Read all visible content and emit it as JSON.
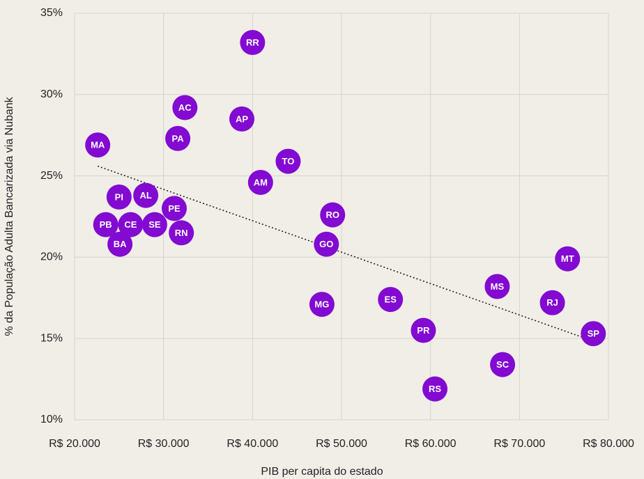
{
  "chart_data": {
    "type": "scatter",
    "xlabel": "PIB per capita do estado",
    "ylabel": "% da População Adulta Bancarizada via Nubank",
    "labels": [
      "RR",
      "AC",
      "AP",
      "MA",
      "PA",
      "TO",
      "AM",
      "PI",
      "AL",
      "PE",
      "RO",
      "PB",
      "CE",
      "SE",
      "RN",
      "BA",
      "GO",
      "MT",
      "MS",
      "RJ",
      "MG",
      "ES",
      "PR",
      "SP",
      "SC",
      "RS"
    ],
    "x": [
      40000,
      32400,
      38800,
      22600,
      31600,
      44000,
      40900,
      25000,
      28000,
      31200,
      49000,
      23500,
      26300,
      29000,
      32000,
      25100,
      48300,
      75400,
      67500,
      73700,
      47800,
      55500,
      59200,
      78300,
      68100,
      60500
    ],
    "y": [
      33.2,
      29.2,
      28.5,
      26.9,
      27.3,
      25.9,
      24.6,
      23.7,
      23.8,
      23.0,
      22.6,
      22.0,
      22.0,
      22.0,
      21.5,
      20.8,
      20.8,
      19.9,
      18.2,
      17.2,
      17.1,
      17.4,
      15.5,
      15.3,
      13.4,
      11.9
    ],
    "color": "#820ad1",
    "trendline": {
      "x": [
        22600,
        78000
      ],
      "y": [
        25.6,
        14.9
      ]
    },
    "xlim": [
      20000,
      80000
    ],
    "ylim": [
      10,
      35
    ],
    "xticks": [
      {
        "value": 20000,
        "label": "R$ 20.000"
      },
      {
        "value": 30000,
        "label": "R$ 30.000"
      },
      {
        "value": 40000,
        "label": "R$ 40.000"
      },
      {
        "value": 50000,
        "label": "R$ 50.000"
      },
      {
        "value": 60000,
        "label": "R$ 60.000"
      },
      {
        "value": 70000,
        "label": "R$ 70.000"
      },
      {
        "value": 80000,
        "label": "R$ 80.000"
      }
    ],
    "yticks": [
      {
        "value": 10,
        "label": "10%"
      },
      {
        "value": 15,
        "label": "15%"
      },
      {
        "value": 20,
        "label": "20%"
      },
      {
        "value": 25,
        "label": "25%"
      },
      {
        "value": 30,
        "label": "30%"
      },
      {
        "value": 35,
        "label": "35%"
      }
    ],
    "grid": true
  }
}
